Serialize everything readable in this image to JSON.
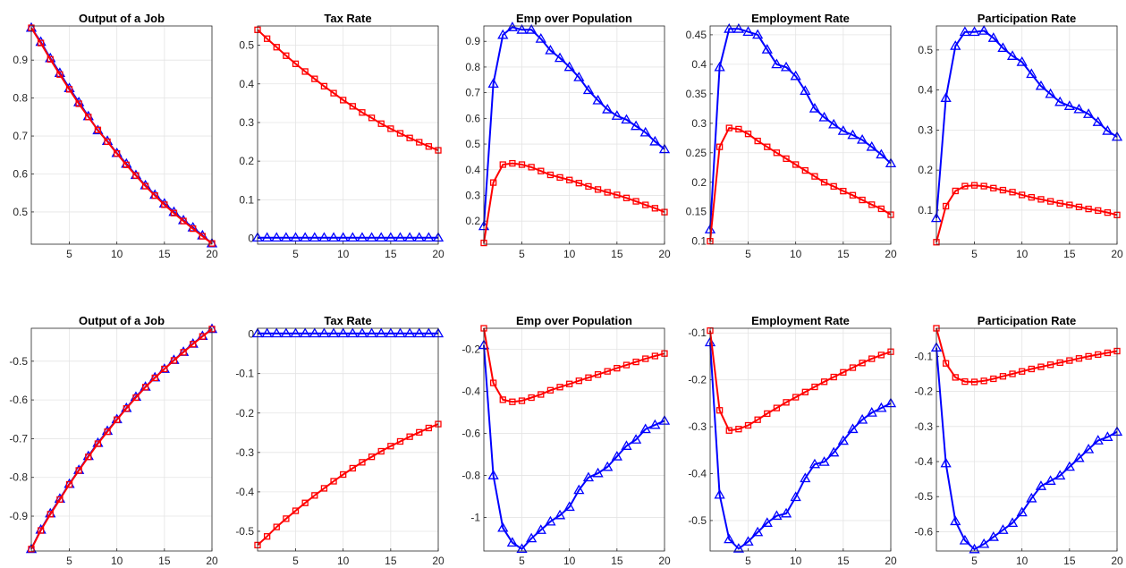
{
  "chart_data": [
    {
      "type": "line",
      "title": "Output of a Job",
      "xlim": [
        1,
        20
      ],
      "ylim": [
        0.415,
        0.99
      ],
      "xticks": [
        5,
        10,
        15,
        20
      ],
      "yticks": [
        0.5,
        0.6,
        0.7,
        0.8,
        0.9
      ],
      "grid": true,
      "series": [
        {
          "color": "#0000ff",
          "marker": "triangle",
          "values": [
            0.985,
            0.948,
            0.905,
            0.866,
            0.826,
            0.789,
            0.752,
            0.715,
            0.687,
            0.655,
            0.627,
            0.597,
            0.57,
            0.545,
            0.522,
            0.5,
            0.478,
            0.459,
            0.438,
            0.417
          ]
        },
        {
          "color": "#ff0000",
          "marker": "square",
          "values": [
            0.985,
            0.945,
            0.902,
            0.862,
            0.823,
            0.785,
            0.75,
            0.716,
            0.685,
            0.654,
            0.624,
            0.596,
            0.568,
            0.543,
            0.519,
            0.497,
            0.476,
            0.456,
            0.436,
            0.417
          ]
        }
      ]
    },
    {
      "type": "line",
      "title": "Tax Rate",
      "xlim": [
        1,
        20
      ],
      "ylim": [
        -0.015,
        0.55
      ],
      "xticks": [
        5,
        10,
        15,
        20
      ],
      "yticks": [
        0,
        0.1,
        0.2,
        0.3,
        0.4,
        0.5
      ],
      "grid": true,
      "series": [
        {
          "color": "#0000ff",
          "marker": "triangle",
          "values": [
            0.002,
            0.002,
            0.002,
            0.002,
            0.002,
            0.002,
            0.002,
            0.002,
            0.002,
            0.002,
            0.002,
            0.002,
            0.002,
            0.002,
            0.002,
            0.002,
            0.002,
            0.002,
            0.002,
            0.002
          ]
        },
        {
          "color": "#ff0000",
          "marker": "square",
          "values": [
            0.54,
            0.517,
            0.495,
            0.473,
            0.452,
            0.432,
            0.413,
            0.394,
            0.376,
            0.358,
            0.342,
            0.326,
            0.312,
            0.297,
            0.284,
            0.272,
            0.26,
            0.249,
            0.238,
            0.228
          ]
        }
      ]
    },
    {
      "type": "line",
      "title": "Emp over Population",
      "xlim": [
        1,
        20
      ],
      "ylim": [
        0.11,
        0.96
      ],
      "xticks": [
        5,
        10,
        15,
        20
      ],
      "yticks": [
        0.2,
        0.3,
        0.4,
        0.5,
        0.6,
        0.7,
        0.8,
        0.9
      ],
      "grid": true,
      "series": [
        {
          "color": "#0000ff",
          "marker": "triangle",
          "values": [
            0.18,
            0.735,
            0.925,
            0.955,
            0.945,
            0.945,
            0.91,
            0.865,
            0.835,
            0.8,
            0.76,
            0.71,
            0.67,
            0.635,
            0.61,
            0.595,
            0.57,
            0.545,
            0.51,
            0.48
          ]
        },
        {
          "color": "#ff0000",
          "marker": "square",
          "values": [
            0.115,
            0.35,
            0.42,
            0.425,
            0.42,
            0.41,
            0.395,
            0.38,
            0.37,
            0.36,
            0.348,
            0.335,
            0.323,
            0.312,
            0.302,
            0.29,
            0.277,
            0.263,
            0.25,
            0.235
          ]
        }
      ]
    },
    {
      "type": "line",
      "title": "Employment Rate",
      "xlim": [
        1,
        20
      ],
      "ylim": [
        0.095,
        0.465
      ],
      "xticks": [
        5,
        10,
        15,
        20
      ],
      "yticks": [
        0.1,
        0.15,
        0.2,
        0.25,
        0.3,
        0.35,
        0.4,
        0.45
      ],
      "grid": true,
      "series": [
        {
          "color": "#0000ff",
          "marker": "triangle",
          "values": [
            0.12,
            0.395,
            0.46,
            0.46,
            0.455,
            0.45,
            0.425,
            0.4,
            0.395,
            0.38,
            0.355,
            0.325,
            0.31,
            0.298,
            0.287,
            0.28,
            0.272,
            0.26,
            0.247,
            0.232
          ]
        },
        {
          "color": "#ff0000",
          "marker": "square",
          "values": [
            0.1,
            0.26,
            0.292,
            0.29,
            0.282,
            0.27,
            0.26,
            0.25,
            0.24,
            0.23,
            0.22,
            0.21,
            0.2,
            0.193,
            0.185,
            0.178,
            0.17,
            0.162,
            0.155,
            0.145
          ]
        }
      ]
    },
    {
      "type": "line",
      "title": "Participation Rate",
      "xlim": [
        1,
        20
      ],
      "ylim": [
        0.015,
        0.56
      ],
      "xticks": [
        5,
        10,
        15,
        20
      ],
      "yticks": [
        0.1,
        0.2,
        0.3,
        0.4,
        0.5
      ],
      "grid": true,
      "series": [
        {
          "color": "#0000ff",
          "marker": "triangle",
          "values": [
            0.08,
            0.38,
            0.51,
            0.545,
            0.545,
            0.548,
            0.53,
            0.505,
            0.485,
            0.47,
            0.44,
            0.41,
            0.39,
            0.37,
            0.36,
            0.352,
            0.34,
            0.32,
            0.298,
            0.283
          ]
        },
        {
          "color": "#ff0000",
          "marker": "square",
          "values": [
            0.02,
            0.11,
            0.148,
            0.16,
            0.162,
            0.16,
            0.155,
            0.15,
            0.145,
            0.138,
            0.132,
            0.127,
            0.122,
            0.117,
            0.113,
            0.108,
            0.103,
            0.099,
            0.094,
            0.088
          ]
        }
      ]
    },
    {
      "type": "line",
      "title": "Output of a Job",
      "xlim": [
        1,
        20
      ],
      "ylim": [
        -0.99,
        -0.415
      ],
      "xticks": [
        5,
        10,
        15,
        20
      ],
      "yticks": [
        -0.9,
        -0.8,
        -0.7,
        -0.6,
        -0.5
      ],
      "grid": true,
      "series": [
        {
          "color": "#0000ff",
          "marker": "triangle",
          "values": [
            -0.985,
            -0.935,
            -0.893,
            -0.855,
            -0.817,
            -0.781,
            -0.745,
            -0.711,
            -0.68,
            -0.65,
            -0.621,
            -0.592,
            -0.566,
            -0.542,
            -0.52,
            -0.497,
            -0.476,
            -0.455,
            -0.435,
            -0.417
          ]
        },
        {
          "color": "#ff0000",
          "marker": "square",
          "values": [
            -0.985,
            -0.937,
            -0.895,
            -0.857,
            -0.818,
            -0.782,
            -0.747,
            -0.713,
            -0.682,
            -0.651,
            -0.622,
            -0.594,
            -0.567,
            -0.543,
            -0.52,
            -0.498,
            -0.477,
            -0.456,
            -0.436,
            -0.417
          ]
        }
      ]
    },
    {
      "type": "line",
      "title": "Tax Rate",
      "xlim": [
        1,
        20
      ],
      "ylim": [
        -0.55,
        0.015
      ],
      "xticks": [
        5,
        10,
        15,
        20
      ],
      "yticks": [
        0,
        -0.1,
        -0.2,
        -0.3,
        -0.4,
        -0.5
      ],
      "grid": true,
      "series": [
        {
          "color": "#0000ff",
          "marker": "triangle",
          "values": [
            0.002,
            0.002,
            0.002,
            0.002,
            0.002,
            0.002,
            0.002,
            0.002,
            0.002,
            0.002,
            0.002,
            0.002,
            0.002,
            0.002,
            0.002,
            0.002,
            0.002,
            0.002,
            0.002,
            0.002
          ]
        },
        {
          "color": "#ff0000",
          "marker": "square",
          "values": [
            -0.535,
            -0.513,
            -0.489,
            -0.468,
            -0.448,
            -0.428,
            -0.409,
            -0.391,
            -0.373,
            -0.356,
            -0.34,
            -0.325,
            -0.311,
            -0.297,
            -0.284,
            -0.272,
            -0.26,
            -0.249,
            -0.238,
            -0.228
          ]
        }
      ]
    },
    {
      "type": "line",
      "title": "Emp over Population",
      "xlim": [
        1,
        20
      ],
      "ylim": [
        -1.16,
        -0.1
      ],
      "xticks": [
        5,
        10,
        15,
        20
      ],
      "yticks": [
        -0.2,
        -0.4,
        -0.6,
        -0.8,
        -1
      ],
      "grid": true,
      "series": [
        {
          "color": "#0000ff",
          "marker": "triangle",
          "values": [
            -0.18,
            -0.8,
            -1.05,
            -1.12,
            -1.15,
            -1.1,
            -1.06,
            -1.02,
            -0.99,
            -0.95,
            -0.87,
            -0.81,
            -0.79,
            -0.76,
            -0.71,
            -0.66,
            -0.63,
            -0.58,
            -0.56,
            -0.54
          ]
        },
        {
          "color": "#ff0000",
          "marker": "square",
          "values": [
            -0.1,
            -0.36,
            -0.44,
            -0.45,
            -0.445,
            -0.43,
            -0.415,
            -0.395,
            -0.38,
            -0.365,
            -0.35,
            -0.335,
            -0.32,
            -0.305,
            -0.29,
            -0.275,
            -0.26,
            -0.245,
            -0.232,
            -0.22
          ]
        }
      ]
    },
    {
      "type": "line",
      "title": "Employment Rate",
      "xlim": [
        1,
        20
      ],
      "ylim": [
        -0.565,
        -0.09
      ],
      "xticks": [
        5,
        10,
        15,
        20
      ],
      "yticks": [
        -0.1,
        -0.2,
        -0.3,
        -0.4,
        -0.5
      ],
      "grid": true,
      "series": [
        {
          "color": "#0000ff",
          "marker": "triangle",
          "values": [
            -0.12,
            -0.445,
            -0.54,
            -0.56,
            -0.545,
            -0.525,
            -0.505,
            -0.49,
            -0.485,
            -0.45,
            -0.41,
            -0.38,
            -0.375,
            -0.355,
            -0.33,
            -0.305,
            -0.285,
            -0.27,
            -0.26,
            -0.25
          ]
        },
        {
          "color": "#ff0000",
          "marker": "square",
          "values": [
            -0.095,
            -0.265,
            -0.308,
            -0.305,
            -0.297,
            -0.285,
            -0.272,
            -0.26,
            -0.248,
            -0.237,
            -0.226,
            -0.215,
            -0.204,
            -0.194,
            -0.184,
            -0.174,
            -0.164,
            -0.155,
            -0.147,
            -0.14
          ]
        }
      ]
    },
    {
      "type": "line",
      "title": "Participation Rate",
      "xlim": [
        1,
        20
      ],
      "ylim": [
        -0.655,
        -0.02
      ],
      "xticks": [
        5,
        10,
        15,
        20
      ],
      "yticks": [
        -0.1,
        -0.2,
        -0.3,
        -0.4,
        -0.5,
        -0.6
      ],
      "grid": true,
      "series": [
        {
          "color": "#0000ff",
          "marker": "triangle",
          "values": [
            -0.075,
            -0.405,
            -0.57,
            -0.625,
            -0.65,
            -0.635,
            -0.615,
            -0.595,
            -0.575,
            -0.545,
            -0.505,
            -0.47,
            -0.455,
            -0.44,
            -0.415,
            -0.39,
            -0.365,
            -0.34,
            -0.33,
            -0.315
          ]
        },
        {
          "color": "#ff0000",
          "marker": "square",
          "values": [
            -0.02,
            -0.12,
            -0.16,
            -0.172,
            -0.173,
            -0.17,
            -0.164,
            -0.157,
            -0.15,
            -0.143,
            -0.136,
            -0.13,
            -0.124,
            -0.118,
            -0.112,
            -0.106,
            -0.1,
            -0.095,
            -0.09,
            -0.085
          ]
        }
      ]
    }
  ]
}
